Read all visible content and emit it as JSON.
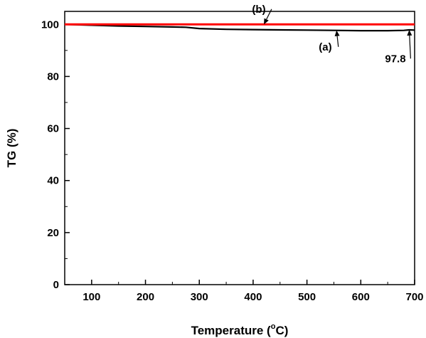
{
  "chart_data": {
    "type": "line",
    "xlabel": "Temperature (°C)",
    "xlabel_main": "Temperature (",
    "xlabel_sup": "o",
    "xlabel_tail": "C)",
    "ylabel": "TG (%)",
    "xlim": [
      50,
      700
    ],
    "ylim": [
      0,
      105
    ],
    "xticks": [
      100,
      200,
      300,
      400,
      500,
      600,
      700
    ],
    "yticks": [
      0,
      20,
      40,
      60,
      80,
      100
    ],
    "grid": false,
    "series": [
      {
        "label": "(a)",
        "color": "#000000",
        "points": [
          [
            50,
            100
          ],
          [
            100,
            99.7
          ],
          [
            150,
            99.4
          ],
          [
            200,
            99.2
          ],
          [
            250,
            99.0
          ],
          [
            275,
            98.9
          ],
          [
            300,
            98.4
          ],
          [
            350,
            98.1
          ],
          [
            400,
            98.0
          ],
          [
            450,
            97.9
          ],
          [
            500,
            97.8
          ],
          [
            550,
            97.7
          ],
          [
            600,
            97.6
          ],
          [
            650,
            97.6
          ],
          [
            680,
            97.7
          ],
          [
            690,
            97.9
          ],
          [
            700,
            97.8
          ]
        ]
      },
      {
        "label": "(b)",
        "color": "#ff0000",
        "points": [
          [
            50,
            100
          ],
          [
            200,
            100
          ],
          [
            400,
            100
          ],
          [
            600,
            100
          ],
          [
            700,
            100
          ]
        ]
      }
    ],
    "annotations": [
      {
        "text": "(b)",
        "x": 420,
        "y": 100,
        "text_x": 398,
        "text_y": 104.5
      },
      {
        "text": "(a)",
        "x": 555,
        "y": 97.7,
        "text_x": 522,
        "text_y": 90
      },
      {
        "text": "97.8",
        "x": 690,
        "y": 97.9,
        "text_x": 645,
        "text_y": 85.5
      }
    ]
  }
}
